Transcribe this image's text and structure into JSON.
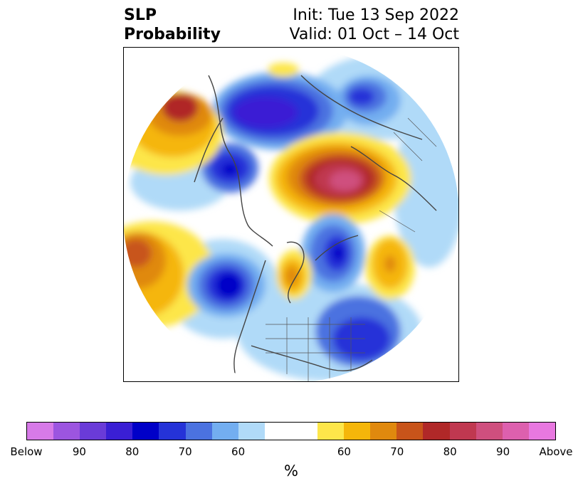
{
  "title": {
    "left_line1": "SLP",
    "left_line2": "Probability",
    "init": "Init: Tue 13 Sep 2022",
    "valid": "Valid: 01 Oct – 14 Oct"
  },
  "colorbar": {
    "colors": [
      "#d77ae8",
      "#9c55e0",
      "#6a3bd8",
      "#3a1fd4",
      "#0000c8",
      "#2533d8",
      "#4b72e0",
      "#73aef0",
      "#b0daf8",
      "#ffffff",
      "#ffffff",
      "#fde64a",
      "#f5b60a",
      "#e0890e",
      "#c8541a",
      "#b02828",
      "#c03850",
      "#cf4f7e",
      "#dd60ae",
      "#e878e0"
    ],
    "labels": [
      {
        "text": "Below",
        "frac": 0.0
      },
      {
        "text": "90",
        "frac": 0.1
      },
      {
        "text": "80",
        "frac": 0.2
      },
      {
        "text": "70",
        "frac": 0.3
      },
      {
        "text": "60",
        "frac": 0.4
      },
      {
        "text": "60",
        "frac": 0.6
      },
      {
        "text": "70",
        "frac": 0.7
      },
      {
        "text": "80",
        "frac": 0.8
      },
      {
        "text": "90",
        "frac": 0.9
      },
      {
        "text": "Above",
        "frac": 1.0
      }
    ],
    "unit": "%"
  }
}
